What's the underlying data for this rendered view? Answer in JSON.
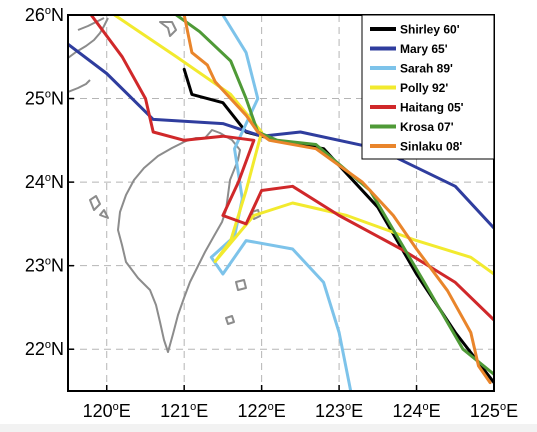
{
  "map": {
    "x_ticks": [
      {
        "value": 120,
        "deg": "120",
        "sup": "o",
        "hemi": "E"
      },
      {
        "value": 121,
        "deg": "121",
        "sup": "o",
        "hemi": "E"
      },
      {
        "value": 122,
        "deg": "122",
        "sup": "o",
        "hemi": "E"
      },
      {
        "value": 123,
        "deg": "123",
        "sup": "o",
        "hemi": "E"
      },
      {
        "value": 124,
        "deg": "124",
        "sup": "o",
        "hemi": "E"
      },
      {
        "value": 125,
        "deg": "125",
        "sup": "o",
        "hemi": "E"
      }
    ],
    "y_ticks": [
      {
        "value": 26,
        "deg": "26",
        "sup": "o",
        "hemi": "N"
      },
      {
        "value": 25,
        "deg": "25",
        "sup": "o",
        "hemi": "N"
      },
      {
        "value": 24,
        "deg": "24",
        "sup": "o",
        "hemi": "N"
      },
      {
        "value": 23,
        "deg": "23",
        "sup": "o",
        "hemi": "N"
      },
      {
        "value": 22,
        "deg": "22",
        "sup": "o",
        "hemi": "N"
      }
    ],
    "lon_range": [
      119.5,
      125.0
    ],
    "lat_range": [
      21.5,
      26.0
    ],
    "grid": "dashed",
    "legend_position": "top-right",
    "coast_color": "#8c8c8c",
    "tracks": [
      {
        "name": "Shirley 60'",
        "color": "#000000",
        "points": [
          [
            121.0,
            25.35
          ],
          [
            121.1,
            25.05
          ],
          [
            121.5,
            24.95
          ],
          [
            121.8,
            24.6
          ],
          [
            122.2,
            24.5
          ],
          [
            122.8,
            24.4
          ],
          [
            123.5,
            23.7
          ],
          [
            124.0,
            22.9
          ],
          [
            124.5,
            22.2
          ],
          [
            125.0,
            21.6
          ]
        ]
      },
      {
        "name": "Mary 65'",
        "color": "#2f3d9e",
        "points": [
          [
            119.5,
            25.65
          ],
          [
            120.0,
            25.3
          ],
          [
            120.6,
            24.75
          ],
          [
            121.5,
            24.7
          ],
          [
            122.0,
            24.55
          ],
          [
            122.5,
            24.6
          ],
          [
            123.5,
            24.4
          ],
          [
            124.5,
            23.95
          ],
          [
            125.0,
            23.45
          ]
        ]
      },
      {
        "name": "Sarah 89'",
        "color": "#7dc3ea",
        "points": [
          [
            121.5,
            26.0
          ],
          [
            121.8,
            25.55
          ],
          [
            121.95,
            25.0
          ],
          [
            121.65,
            24.4
          ],
          [
            121.75,
            23.8
          ],
          [
            121.65,
            23.35
          ],
          [
            121.35,
            23.1
          ],
          [
            121.5,
            22.9
          ],
          [
            121.8,
            23.3
          ],
          [
            122.4,
            23.2
          ],
          [
            122.8,
            22.8
          ],
          [
            123.0,
            22.2
          ],
          [
            123.15,
            21.5
          ]
        ]
      },
      {
        "name": "Polly 92'",
        "color": "#f2ea2e",
        "points": [
          [
            120.1,
            26.0
          ],
          [
            120.9,
            25.5
          ],
          [
            121.6,
            25.05
          ],
          [
            122.0,
            24.6
          ],
          [
            121.8,
            23.9
          ],
          [
            121.6,
            23.3
          ],
          [
            121.4,
            23.05
          ],
          [
            121.9,
            23.6
          ],
          [
            122.4,
            23.75
          ],
          [
            123.1,
            23.6
          ],
          [
            124.0,
            23.3
          ],
          [
            124.7,
            23.1
          ],
          [
            125.0,
            22.9
          ]
        ]
      },
      {
        "name": "Haitang 05'",
        "color": "#d0282a",
        "points": [
          [
            119.8,
            26.0
          ],
          [
            120.2,
            25.5
          ],
          [
            120.5,
            25.0
          ],
          [
            120.6,
            24.6
          ],
          [
            121.0,
            24.5
          ],
          [
            121.5,
            24.55
          ],
          [
            121.9,
            24.5
          ],
          [
            121.7,
            24.0
          ],
          [
            121.5,
            23.6
          ],
          [
            121.8,
            23.5
          ],
          [
            122.0,
            23.9
          ],
          [
            122.4,
            23.95
          ],
          [
            123.0,
            23.6
          ],
          [
            123.8,
            23.2
          ],
          [
            124.5,
            22.8
          ],
          [
            125.0,
            22.35
          ]
        ]
      },
      {
        "name": "Krosa 07'",
        "color": "#4f9a37",
        "points": [
          [
            120.9,
            26.0
          ],
          [
            121.2,
            25.8
          ],
          [
            121.6,
            25.45
          ],
          [
            121.8,
            25.0
          ],
          [
            121.95,
            24.6
          ],
          [
            122.2,
            24.5
          ],
          [
            122.7,
            24.45
          ],
          [
            123.4,
            23.9
          ],
          [
            124.1,
            22.8
          ],
          [
            124.6,
            22.0
          ],
          [
            125.0,
            21.7
          ]
        ]
      },
      {
        "name": "Sinlaku 08'",
        "color": "#e9852b",
        "points": [
          [
            121.0,
            26.0
          ],
          [
            121.1,
            25.55
          ],
          [
            121.3,
            25.4
          ],
          [
            121.4,
            25.2
          ],
          [
            121.6,
            25.0
          ],
          [
            121.8,
            24.8
          ],
          [
            121.95,
            24.6
          ],
          [
            122.1,
            24.5
          ],
          [
            122.7,
            24.4
          ],
          [
            123.3,
            24.0
          ],
          [
            123.7,
            23.6
          ],
          [
            124.0,
            23.2
          ],
          [
            124.4,
            22.7
          ],
          [
            124.7,
            22.2
          ],
          [
            124.8,
            21.8
          ],
          [
            124.95,
            21.6
          ]
        ]
      }
    ]
  }
}
